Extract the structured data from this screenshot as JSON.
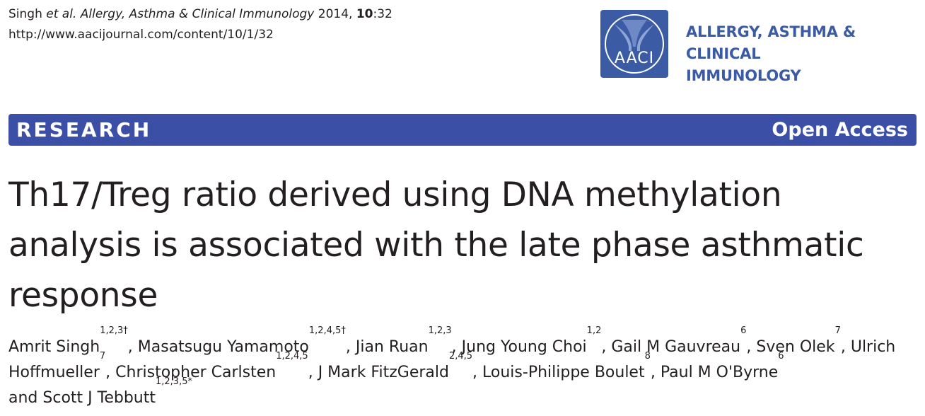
{
  "citation": {
    "authors_short": "Singh",
    "etal": "et al.",
    "journal": "Allergy, Asthma & Clinical Immunology",
    "year": "2014,",
    "volume": "10",
    "article": ":32",
    "url": "http://www.aacijournal.com/content/10/1/32"
  },
  "logo": {
    "text": "AACI"
  },
  "journal_name": {
    "line1": "ALLERGY, ASTHMA & CLINICAL",
    "line2": "IMMUNOLOGY"
  },
  "banner": {
    "type": "RESEARCH",
    "access": "Open Access",
    "color": "#3b4fa6"
  },
  "title": "Th17/Treg ratio derived using DNA methylation analysis is associated with the late phase asthmatic response",
  "authors": [
    {
      "name": "Amrit Singh",
      "sup": "1,2,3†"
    },
    {
      "name": "Masatsugu Yamamoto",
      "sup": "1,2,4,5†"
    },
    {
      "name": "Jian Ruan",
      "sup": "1,2,3"
    },
    {
      "name": "Jung Young Choi",
      "sup": "1,2"
    },
    {
      "name": "Gail M Gauvreau",
      "sup": "6"
    },
    {
      "name": "Sven Olek",
      "sup": "7"
    },
    {
      "name": "Ulrich Hoffmueller",
      "sup": "7"
    },
    {
      "name": "Christopher Carlsten",
      "sup": "1,2,4,5"
    },
    {
      "name": "J Mark FitzGerald",
      "sup": "2,4,5"
    },
    {
      "name": "Louis-Philippe Boulet",
      "sup": "8"
    },
    {
      "name": "Paul M O'Byrne",
      "sup": "6"
    },
    {
      "name": "Scott J Tebbutt",
      "sup": "1,2,3,5*"
    }
  ],
  "authors_conj": "and"
}
